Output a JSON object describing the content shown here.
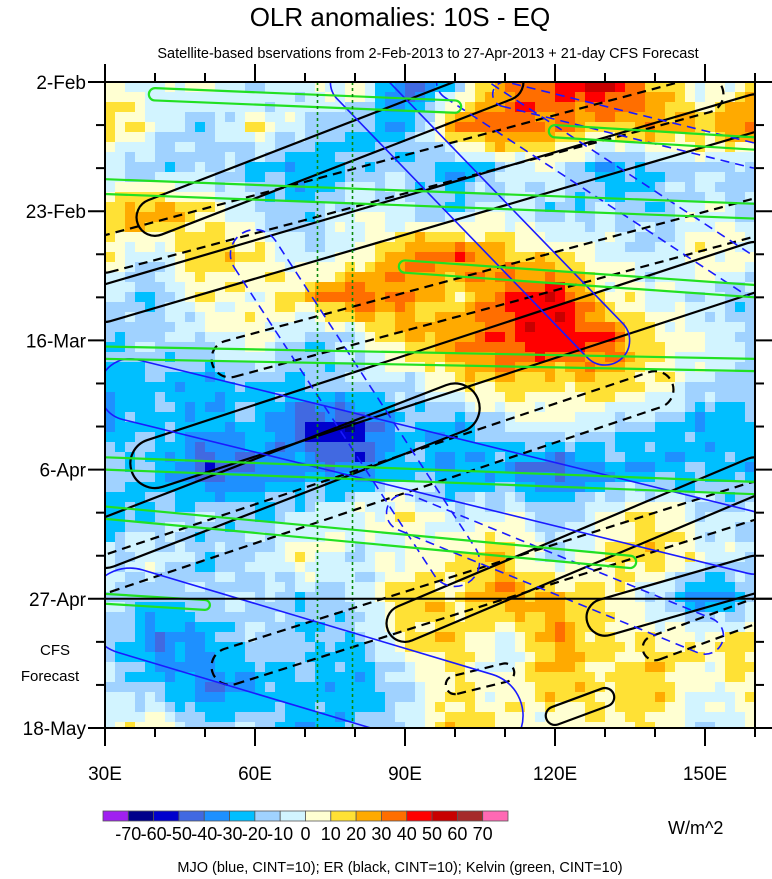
{
  "chart_data": {
    "type": "heatmap",
    "title": "OLR anomalies: 10S - EQ",
    "subtitle": "Satellite-based bservations from 2-Feb-2013 to 27-Apr-2013 + 21-day CFS Forecast",
    "xlabel": "",
    "ylabel": "",
    "xlim": [
      30,
      160
    ],
    "ylim_days": [
      0,
      105
    ],
    "x_ticks": [
      {
        "value": 30,
        "label": "30E"
      },
      {
        "value": 60,
        "label": "60E"
      },
      {
        "value": 90,
        "label": "90E"
      },
      {
        "value": 120,
        "label": "120E"
      },
      {
        "value": 150,
        "label": "150E"
      }
    ],
    "y_ticks": [
      {
        "day": 0,
        "label": "2-Feb"
      },
      {
        "day": 21,
        "label": "23-Feb"
      },
      {
        "day": 42,
        "label": "16-Mar"
      },
      {
        "day": 63,
        "label": "6-Apr"
      },
      {
        "day": 84,
        "label": "27-Apr"
      },
      {
        "day": 105,
        "label": "18-May"
      }
    ],
    "forecast_label": [
      "CFS",
      "Forecast"
    ],
    "forecast_start_day": 84,
    "reference_lons": [
      72.5,
      79.5
    ],
    "colorbar": {
      "levels": [
        -70,
        -60,
        -50,
        -40,
        -30,
        -20,
        -10,
        0,
        10,
        20,
        30,
        40,
        50,
        60,
        70
      ],
      "colors": [
        "#a020f0",
        "#00008b",
        "#0000cd",
        "#4169e1",
        "#1e90ff",
        "#00bfff",
        "#a0d2ff",
        "#d2f4ff",
        "#ffffd2",
        "#ffe135",
        "#ffaa00",
        "#ff6e00",
        "#ff0000",
        "#c80000",
        "#a52a2a",
        "#ff69b4"
      ],
      "units": "W/m^2"
    },
    "legend_text": "MJO (blue, CINT=10); ER (black, CINT=10); Kelvin (green, CINT=10)",
    "grid_lons": [
      30,
      40,
      50,
      60,
      70,
      80,
      90,
      100,
      110,
      120,
      130,
      140,
      150,
      160
    ],
    "grid_days": [
      0,
      7,
      14,
      21,
      28,
      35,
      42,
      49,
      56,
      63,
      70,
      77,
      84,
      91,
      98,
      105
    ],
    "values": [
      [
        10,
        -10,
        10,
        -20,
        0,
        10,
        -50,
        -20,
        30,
        40,
        60,
        20,
        -10,
        10
      ],
      [
        20,
        0,
        -20,
        10,
        -10,
        -20,
        -30,
        30,
        40,
        30,
        20,
        30,
        20,
        40
      ],
      [
        -10,
        -20,
        -10,
        -20,
        -30,
        -20,
        -10,
        -30,
        -10,
        0,
        -30,
        -20,
        -10,
        -20
      ],
      [
        20,
        30,
        10,
        -10,
        -20,
        0,
        -10,
        -20,
        0,
        -20,
        -10,
        -20,
        0,
        -10
      ],
      [
        10,
        -10,
        20,
        10,
        -10,
        0,
        30,
        40,
        20,
        10,
        0,
        -10,
        10,
        0
      ],
      [
        -10,
        -20,
        10,
        0,
        20,
        40,
        30,
        10,
        40,
        50,
        10,
        0,
        -10,
        -20
      ],
      [
        -20,
        -10,
        -10,
        10,
        -20,
        -10,
        20,
        30,
        40,
        50,
        40,
        10,
        0,
        -10
      ],
      [
        -30,
        -20,
        -30,
        -20,
        -20,
        -10,
        -10,
        10,
        20,
        10,
        20,
        10,
        -10,
        -20
      ],
      [
        -30,
        -20,
        -30,
        -20,
        -50,
        -60,
        -20,
        -30,
        -10,
        0,
        -10,
        -20,
        -30,
        -20
      ],
      [
        -10,
        -20,
        -50,
        -40,
        -30,
        -40,
        -20,
        -30,
        -30,
        -50,
        -30,
        -30,
        -20,
        -30
      ],
      [
        -30,
        -20,
        -10,
        -20,
        -10,
        0,
        10,
        -10,
        0,
        -20,
        0,
        10,
        -10,
        -10
      ],
      [
        -10,
        0,
        -20,
        -10,
        10,
        -10,
        0,
        10,
        20,
        -10,
        10,
        20,
        0,
        -10
      ],
      [
        -10,
        -20,
        -10,
        -10,
        -20,
        -10,
        20,
        10,
        30,
        20,
        10,
        -10,
        -40,
        -20
      ],
      [
        -10,
        -40,
        -30,
        -10,
        -20,
        -20,
        10,
        20,
        -10,
        30,
        10,
        10,
        10,
        20
      ],
      [
        -10,
        -20,
        -40,
        -30,
        -20,
        -30,
        -10,
        10,
        0,
        20,
        10,
        20,
        0,
        10
      ],
      [
        0,
        10,
        -20,
        -10,
        -30,
        -20,
        -10,
        20,
        10,
        0,
        10,
        10,
        -10,
        0
      ]
    ],
    "contours": [
      {
        "series": "ER",
        "sign": "pos",
        "from": [
          30,
          36
        ],
        "to": [
          160,
          5
        ],
        "halfwidth_days": 3
      },
      {
        "series": "ER",
        "sign": "neg",
        "from": [
          30,
          28
        ],
        "to": [
          150,
          2
        ],
        "halfwidth_days": 3
      },
      {
        "series": "ER",
        "sign": "pos",
        "from": [
          40,
          22
        ],
        "to": [
          110,
          0
        ],
        "halfwidth_days": 3
      },
      {
        "series": "ER",
        "sign": "neg",
        "from": [
          55,
          45
        ],
        "to": [
          160,
          22
        ],
        "halfwidth_days": 3
      },
      {
        "series": "ER",
        "sign": "pos",
        "from": [
          40,
          62
        ],
        "to": [
          160,
          30
        ],
        "halfwidth_days": 4
      },
      {
        "series": "ER",
        "sign": "neg",
        "from": [
          30,
          80
        ],
        "to": [
          140,
          50
        ],
        "halfwidth_days": 3
      },
      {
        "series": "ER",
        "sign": "pos",
        "from": [
          30,
          75
        ],
        "to": [
          100,
          53
        ],
        "halfwidth_days": 4
      },
      {
        "series": "ER",
        "sign": "neg",
        "from": [
          55,
          95
        ],
        "to": [
          160,
          68
        ],
        "halfwidth_days": 3
      },
      {
        "series": "ER",
        "sign": "pos",
        "from": [
          90,
          88
        ],
        "to": [
          160,
          64
        ],
        "halfwidth_days": 3
      },
      {
        "series": "ER",
        "sign": "pos",
        "from": [
          130,
          87
        ],
        "to": [
          160,
          80
        ],
        "halfwidth_days": 3
      },
      {
        "series": "ER",
        "sign": "neg",
        "from": [
          140,
          92
        ],
        "to": [
          160,
          86
        ],
        "halfwidth_days": 2
      },
      {
        "series": "ER",
        "sign": "pos",
        "from": [
          120,
          103
        ],
        "to": [
          130,
          100
        ],
        "halfwidth_days": 1.5
      },
      {
        "series": "ER",
        "sign": "neg",
        "from": [
          100,
          98
        ],
        "to": [
          110,
          96
        ],
        "halfwidth_days": 1.5
      },
      {
        "series": "MJO",
        "sign": "pos",
        "from": [
          80,
          0
        ],
        "to": [
          130,
          42
        ],
        "halfwidth_days": 4
      },
      {
        "series": "MJO",
        "sign": "neg",
        "from": [
          100,
          0
        ],
        "to": [
          160,
          32
        ],
        "halfwidth_days": 3
      },
      {
        "series": "MJO",
        "sign": "pos",
        "from": [
          35,
          50
        ],
        "to": [
          160,
          75
        ],
        "halfwidth_days": 5
      },
      {
        "series": "MJO",
        "sign": "neg",
        "from": [
          60,
          28
        ],
        "to": [
          100,
          78
        ],
        "halfwidth_days": 4
      },
      {
        "series": "MJO",
        "sign": "neg",
        "from": [
          90,
          70
        ],
        "to": [
          150,
          90
        ],
        "halfwidth_days": 3
      },
      {
        "series": "MJO",
        "sign": "pos",
        "from": [
          35,
          86
        ],
        "to": [
          105,
          103
        ],
        "halfwidth_days": 7
      },
      {
        "series": "MJO",
        "sign": "neg",
        "from": [
          110,
          2
        ],
        "to": [
          160,
          12
        ],
        "halfwidth_days": 2
      },
      {
        "series": "Kelvin",
        "sign": "pos",
        "from": [
          30,
          17
        ],
        "to": [
          160,
          21
        ],
        "halfwidth_days": 1.2
      },
      {
        "series": "Kelvin",
        "sign": "pos",
        "from": [
          30,
          44
        ],
        "to": [
          160,
          46
        ],
        "halfwidth_days": 1
      },
      {
        "series": "Kelvin",
        "sign": "pos",
        "from": [
          30,
          62
        ],
        "to": [
          160,
          66
        ],
        "halfwidth_days": 1
      },
      {
        "series": "Kelvin",
        "sign": "pos",
        "from": [
          30,
          70
        ],
        "to": [
          135,
          78
        ],
        "halfwidth_days": 1
      },
      {
        "series": "Kelvin",
        "sign": "pos",
        "from": [
          40,
          2
        ],
        "to": [
          100,
          4
        ],
        "halfwidth_days": 1
      },
      {
        "series": "Kelvin",
        "sign": "pos",
        "from": [
          90,
          30
        ],
        "to": [
          160,
          34
        ],
        "halfwidth_days": 1
      },
      {
        "series": "Kelvin",
        "sign": "pos",
        "from": [
          30,
          84
        ],
        "to": [
          50,
          85
        ],
        "halfwidth_days": 0.8
      },
      {
        "series": "Kelvin",
        "sign": "pos",
        "from": [
          120,
          8
        ],
        "to": [
          160,
          10
        ],
        "halfwidth_days": 1
      }
    ],
    "series_colors": {
      "MJO": "#1a1aff",
      "ER": "#000000",
      "Kelvin": "#22e022"
    }
  }
}
